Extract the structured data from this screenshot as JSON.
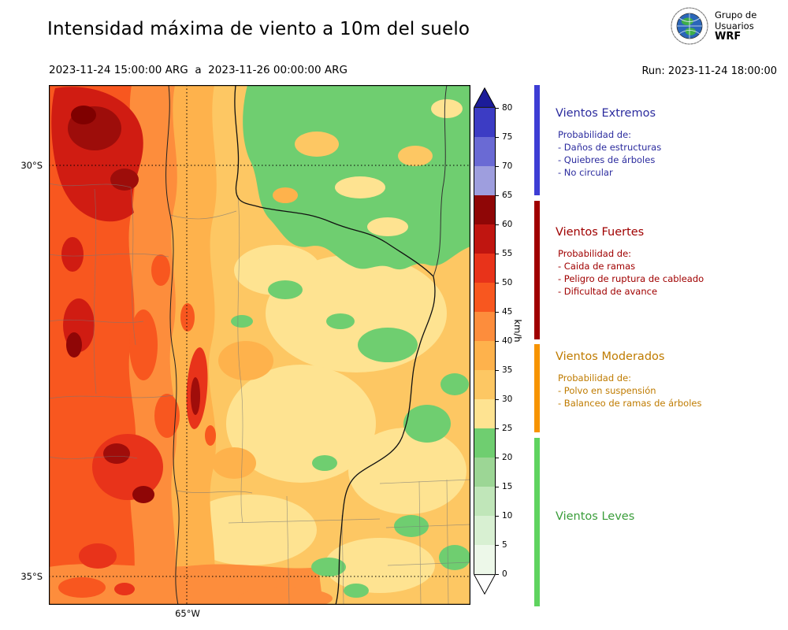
{
  "header": {
    "title": "Intensidad máxima de viento a 10m del suelo",
    "period": "2023-11-24 15:00:00 ARG  a  2023-11-26 00:00:00 ARG",
    "run": "Run: 2023-11-24 18:00:00",
    "logo": {
      "line1": "Grupo de",
      "line2": "Usuarios",
      "line3": "WRF"
    }
  },
  "map": {
    "lat_top": "30°S",
    "lat_bottom": "35°S",
    "lon": "65°W"
  },
  "colorbar": {
    "unit": "km/h",
    "ticks": [
      0,
      5,
      10,
      15,
      20,
      25,
      30,
      35,
      40,
      45,
      50,
      55,
      60,
      65,
      70,
      75,
      80
    ],
    "segments": [
      {
        "from": 0,
        "color": "#edf8e9"
      },
      {
        "from": 5,
        "color": "#d8f0d2"
      },
      {
        "from": 10,
        "color": "#c0e6b9"
      },
      {
        "from": 15,
        "color": "#9cd695"
      },
      {
        "from": 20,
        "color": "#6fce70"
      },
      {
        "from": 25,
        "color": "#fee391"
      },
      {
        "from": 30,
        "color": "#fdc763"
      },
      {
        "from": 35,
        "color": "#feb24c"
      },
      {
        "from": 40,
        "color": "#fd8d3c"
      },
      {
        "from": 45,
        "color": "#f8571f"
      },
      {
        "from": 50,
        "color": "#e8331a"
      },
      {
        "from": 55,
        "color": "#c01510"
      },
      {
        "from": 60,
        "color": "#8f0606"
      },
      {
        "from": 65,
        "color": "#9e9ede"
      },
      {
        "from": 70,
        "color": "#6a6ad4"
      },
      {
        "from": 75,
        "color": "#3c3cc4"
      }
    ],
    "over_color": "#1c1c99",
    "under_color": "#ffffff"
  },
  "legend": {
    "sections": [
      {
        "title": "Vientos Extremos",
        "text_color": "#2b2b9e",
        "bar_color": "#3d3dd4",
        "lines": [
          "Probabilidad de:",
          "- Daños de estructuras",
          "- Quiebres de árboles",
          "- No circular"
        ]
      },
      {
        "title": "Vientos Fuertes",
        "text_color": "#a00000",
        "bar_color": "#a00000",
        "lines": [
          "Probabilidad de:",
          "- Caida de ramas",
          "- Peligro de ruptura de cableado",
          "- Dificultad de avance"
        ]
      },
      {
        "title": "Vientos Moderados",
        "text_color": "#bf7b00",
        "bar_color": "#f79400",
        "lines": [
          "Probabilidad de:",
          "- Polvo en suspensión",
          "- Balanceo de ramas de árboles"
        ]
      },
      {
        "title": "Vientos Leves",
        "text_color": "#3a9d3a",
        "bar_color": "#5fd35f",
        "lines": []
      }
    ]
  }
}
